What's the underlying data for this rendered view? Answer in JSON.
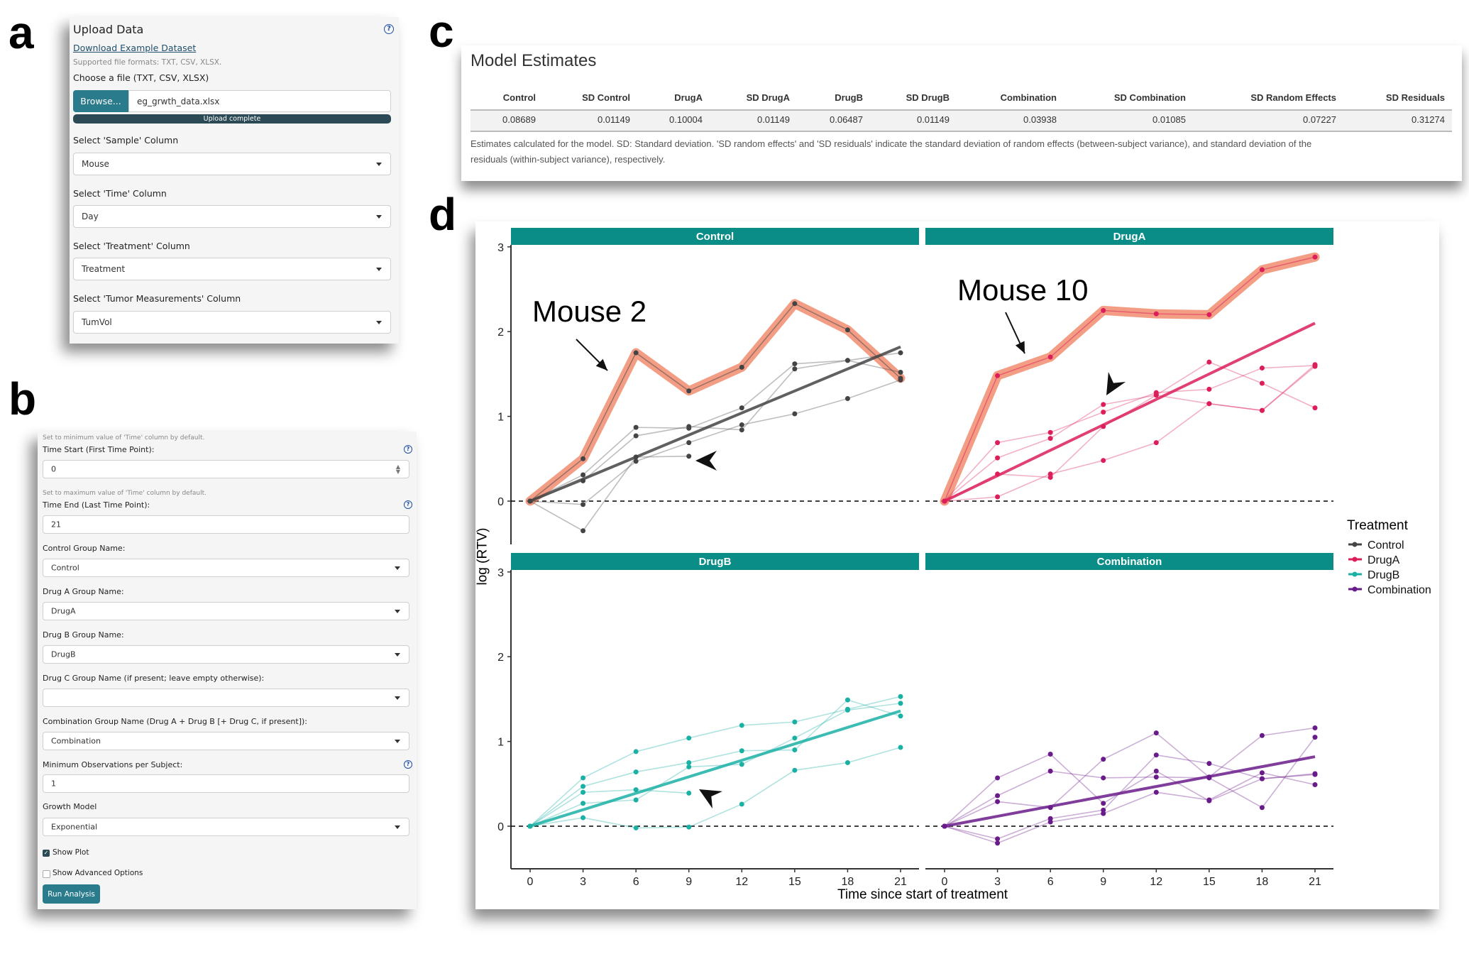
{
  "panel_labels": {
    "a": "a",
    "b": "b",
    "c": "c",
    "d": "d"
  },
  "upload": {
    "title": "Upload Data",
    "download_link": "Download Example Dataset",
    "supported": "Supported file formats: TXT, CSV, XLSX.",
    "choose_label": "Choose a file (TXT, CSV, XLSX)",
    "browse_label": "Browse...",
    "file_name": "eg_grwth_data.xlsx",
    "progress_label": "Upload complete",
    "progress_percent": 100,
    "fields": [
      {
        "label": "Select 'Sample' Column",
        "value": "Mouse"
      },
      {
        "label": "Select 'Time' Column",
        "value": "Day"
      },
      {
        "label": "Select 'Treatment' Column",
        "value": "Treatment"
      },
      {
        "label": "Select 'Tumor Measurements' Column",
        "value": "TumVol"
      }
    ]
  },
  "settings": {
    "time_start_hint": "Set to minimum value of 'Time' column by default.",
    "time_start_label": "Time Start (First Time Point):",
    "time_start_value": "0",
    "time_end_hint": "Set to maximum value of 'Time' column by default.",
    "time_end_label": "Time End (Last Time Point):",
    "time_end_value": "21",
    "control_label": "Control Group Name:",
    "control_value": "Control",
    "druga_label": "Drug A Group Name:",
    "druga_value": "DrugA",
    "drugb_label": "Drug B Group Name:",
    "drugb_value": "DrugB",
    "drugc_label": "Drug C Group Name (if present; leave empty otherwise):",
    "drugc_value": "",
    "combination_label": "Combination Group Name (Drug A + Drug B [+ Drug C, if present]):",
    "combination_value": "Combination",
    "min_obs_label": "Minimum Observations per Subject:",
    "min_obs_value": "1",
    "growth_label": "Growth Model",
    "growth_value": "Exponential",
    "show_plot_label": "Show Plot",
    "show_plot_checked": true,
    "show_advanced_label": "Show Advanced Options",
    "show_advanced_checked": false,
    "run_label": "Run Analysis"
  },
  "estimates": {
    "title": "Model Estimates",
    "columns": [
      "Control",
      "SD Control",
      "DrugA",
      "SD DrugA",
      "DrugB",
      "SD DrugB",
      "Combination",
      "SD Combination",
      "SD Random Effects",
      "SD Residuals"
    ],
    "values": [
      "0.08689",
      "0.01149",
      "0.10004",
      "0.01149",
      "0.06487",
      "0.01149",
      "0.03938",
      "0.01085",
      "0.07227",
      "0.31274"
    ],
    "caption_line1": "Estimates calculated for the model. SD: Standard deviation. 'SD random effects' and 'SD residuals' indicate the standard deviation of random effects (between-subject variance), and standard deviation of the",
    "caption_line2": "residuals (within-subject variance), respectively."
  },
  "chart_data": {
    "type": "line",
    "xlabel": "Time since start of treatment",
    "ylabel": "log (RTV)",
    "x": [
      0,
      3,
      6,
      9,
      12,
      15,
      18,
      21
    ],
    "x_ticks": [
      "0",
      "3",
      "6",
      "9",
      "12",
      "15",
      "18",
      "21"
    ],
    "y_ticks": [
      "0",
      "1",
      "2",
      "3"
    ],
    "ylim": [
      -0.5,
      3.2
    ],
    "legend_title": "Treatment",
    "legend_placement": "right",
    "legend": [
      {
        "name": "Control",
        "color": "#444444"
      },
      {
        "name": "DrugA",
        "color": "#dc1f5a"
      },
      {
        "name": "DrugB",
        "color": "#1ab0a4"
      },
      {
        "name": "Combination",
        "color": "#6a1b8a"
      }
    ],
    "highlight_color": "#ef7c5c",
    "facets": [
      {
        "name": "Control",
        "color": "#444444",
        "fit": [
          0,
          1.82
        ],
        "highlight": {
          "label": "Mouse 2",
          "values": [
            0,
            0.5,
            1.75,
            1.3,
            1.58,
            2.33,
            2.02,
            1.45
          ]
        },
        "mice": [
          [
            0,
            0.31,
            0.87,
            0.86,
            1.1,
            1.62,
            1.66,
            1.75
          ],
          [
            0,
            0.24,
            0.77,
            0.88,
            0.84,
            1.56,
            1.66,
            1.52
          ],
          [
            0,
            -0.04,
            0.47,
            0.69,
            0.9,
            1.03,
            1.21,
            1.43
          ],
          [
            0,
            -0.35,
            0.52,
            0.53
          ]
        ]
      },
      {
        "name": "DrugA",
        "color": "#dc1f5a",
        "fit": [
          0,
          2.1
        ],
        "highlight": {
          "label": "Mouse 10",
          "values": [
            0,
            1.48,
            1.7,
            2.25,
            2.21,
            2.2,
            2.73,
            2.88
          ]
        },
        "mice": [
          [
            0,
            0.69,
            0.81,
            1.05,
            1.28,
            1.32,
            1.57,
            1.6
          ],
          [
            0,
            0.51,
            0.74,
            1.14,
            1.25,
            1.64,
            1.39,
            1.1
          ],
          [
            0,
            0.32,
            0.28,
            0.88,
            1.25,
            1.15,
            1.07,
            1.61
          ],
          [
            0,
            0.05,
            0.32,
            0.48,
            0.69,
            1.15,
            1.07,
            1.59
          ]
        ]
      },
      {
        "name": "DrugB",
        "color": "#1ab0a4",
        "fit": [
          0,
          1.36
        ],
        "highlight": null,
        "mice": [
          [
            0,
            0.57,
            0.88,
            1.04,
            1.19,
            1.23,
            1.38,
            1.53
          ],
          [
            0,
            0.47,
            0.64,
            0.75,
            0.89,
            0.9,
            1.49,
            1.3
          ],
          [
            0,
            0.4,
            0.43,
            0.39
          ],
          [
            0,
            0.27,
            0.31,
            0.7,
            0.73,
            1.04,
            1.37,
            1.45
          ],
          [
            0,
            0.1,
            -0.02,
            -0.01,
            0.26,
            0.66,
            0.75,
            0.93
          ]
        ]
      },
      {
        "name": "Combination",
        "color": "#6a1b8a",
        "fit": [
          0,
          0.82
        ],
        "highlight": null,
        "mice": [
          [
            0,
            0.57,
            0.85,
            0.27,
            0.65,
            0.3,
            0.56,
            0.62
          ],
          [
            0,
            0.36,
            0.65,
            0.57,
            0.58,
            0.57,
            0.22,
            1.05
          ],
          [
            0,
            0.29,
            0.22,
            0.79,
            1.1,
            0.58,
            1.07,
            1.16
          ],
          [
            0,
            -0.15,
            0.09,
            0.19,
            0.84,
            0.74,
            0.56,
            0.61
          ],
          [
            0,
            -0.2,
            0.05,
            0.15,
            0.4,
            0.31,
            0.63,
            0.49
          ]
        ]
      }
    ]
  }
}
